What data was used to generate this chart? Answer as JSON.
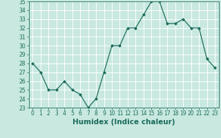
{
  "xlabel": "Humidex (Indice chaleur)",
  "x": [
    0,
    1,
    2,
    3,
    4,
    5,
    6,
    7,
    8,
    9,
    10,
    11,
    12,
    13,
    14,
    15,
    16,
    17,
    18,
    19,
    20,
    21,
    22,
    23
  ],
  "y": [
    28,
    27,
    25,
    25,
    26,
    25,
    24.5,
    23,
    24,
    27,
    30,
    30,
    32,
    32,
    33.5,
    35,
    35,
    32.5,
    32.5,
    33,
    32,
    32,
    28.5,
    27.5
  ],
  "line_color": "#1a6b5a",
  "marker": "D",
  "marker_size": 2.0,
  "bg_color": "#c8e8e0",
  "grid_color": "#ffffff",
  "ylim": [
    23,
    35
  ],
  "yticks": [
    23,
    24,
    25,
    26,
    27,
    28,
    29,
    30,
    31,
    32,
    33,
    34,
    35
  ],
  "xticks": [
    0,
    1,
    2,
    3,
    4,
    5,
    6,
    7,
    8,
    9,
    10,
    11,
    12,
    13,
    14,
    15,
    16,
    17,
    18,
    19,
    20,
    21,
    22,
    23
  ],
  "tick_label_fontsize": 5.5,
  "xlabel_fontsize": 7.5,
  "axis_color": "#1a6b5a",
  "linewidth": 0.9
}
